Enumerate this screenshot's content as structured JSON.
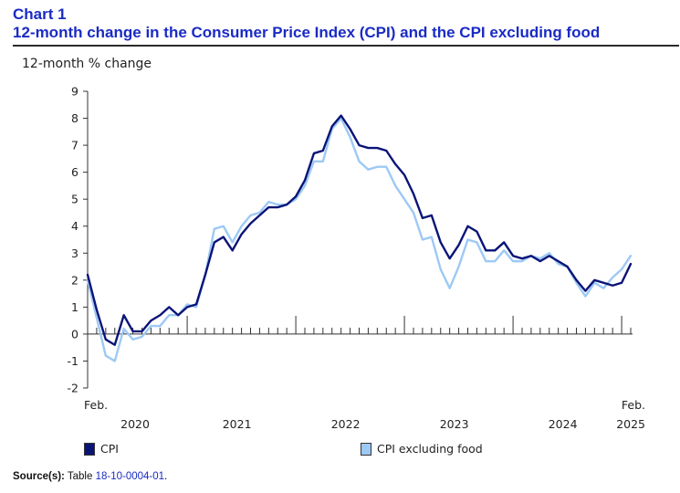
{
  "header": {
    "label": "Chart 1",
    "title": "12-month change in the Consumer Price Index (CPI) and the CPI excluding food"
  },
  "source": {
    "label": "Source(s):",
    "text": "Table",
    "link": "18-10-0004-01",
    "period": "."
  },
  "colors": {
    "cpi": "#0a1478",
    "cpi_ex_food": "#9dc9f5"
  },
  "chart_data": {
    "type": "line",
    "title": "12-month change in the Consumer Price Index (CPI) and the CPI excluding food",
    "ylabel": "12-month % change",
    "xlabel": "",
    "ylim": [
      -2,
      9
    ],
    "yticks": [
      -2,
      -1,
      0,
      1,
      2,
      3,
      4,
      5,
      6,
      7,
      8,
      9
    ],
    "x_range": [
      "2020-02",
      "2025-02"
    ],
    "x_start_label": "Feb.",
    "x_end_label": "Feb.",
    "year_labels": [
      "2020",
      "2021",
      "2022",
      "2023",
      "2024",
      "2025"
    ],
    "grid": false,
    "legend_position": "bottom",
    "series": [
      {
        "name": "CPI",
        "color": "#0a1478",
        "values": [
          2.2,
          0.9,
          -0.2,
          -0.4,
          0.7,
          0.1,
          0.1,
          0.5,
          0.7,
          1.0,
          0.7,
          1.0,
          1.1,
          2.2,
          3.4,
          3.6,
          3.1,
          3.7,
          4.1,
          4.4,
          4.7,
          4.7,
          4.8,
          5.1,
          5.7,
          6.7,
          6.8,
          7.7,
          8.1,
          7.6,
          7.0,
          6.9,
          6.9,
          6.8,
          6.3,
          5.9,
          5.2,
          4.3,
          4.4,
          3.4,
          2.8,
          3.3,
          4.0,
          3.8,
          3.1,
          3.1,
          3.4,
          2.9,
          2.8,
          2.9,
          2.7,
          2.9,
          2.7,
          2.5,
          2.0,
          1.6,
          2.0,
          1.9,
          1.8,
          1.9,
          2.6
        ]
      },
      {
        "name": "CPI excluding food",
        "color": "#9dc9f5",
        "values": [
          2.0,
          0.6,
          -0.8,
          -1.0,
          0.2,
          -0.2,
          -0.1,
          0.3,
          0.3,
          0.7,
          0.7,
          1.1,
          1.0,
          2.2,
          3.9,
          4.0,
          3.4,
          4.0,
          4.4,
          4.5,
          4.9,
          4.8,
          4.8,
          5.0,
          5.5,
          6.4,
          6.4,
          7.6,
          8.0,
          7.3,
          6.4,
          6.1,
          6.2,
          6.2,
          5.5,
          5.0,
          4.5,
          3.5,
          3.6,
          2.4,
          1.7,
          2.5,
          3.5,
          3.4,
          2.7,
          2.7,
          3.1,
          2.7,
          2.7,
          2.9,
          2.8,
          3.0,
          2.6,
          2.5,
          1.9,
          1.4,
          1.9,
          1.7,
          2.1,
          2.4,
          2.9
        ]
      }
    ]
  }
}
